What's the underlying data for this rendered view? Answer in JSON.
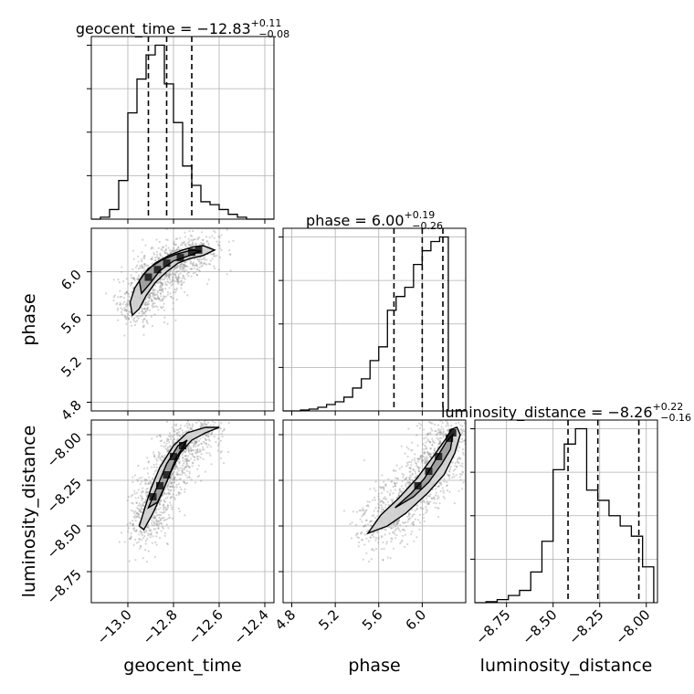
{
  "figure": {
    "colors": {
      "line": "#000000",
      "grid": "#b0b0b0",
      "scatter": "#888888"
    }
  },
  "chart_data": [
    {
      "type": "histogram",
      "panel": "geocent_time-hist",
      "title_text": "geocent_time = −12.83",
      "title_sup": "+0.11",
      "title_sub": "−0.08",
      "xlim": [
        -13.16,
        -12.36
      ],
      "grid": true,
      "quantiles": [
        -12.91,
        -12.83,
        -12.72
      ],
      "bin_edges": [
        -13.16,
        -13.12,
        -13.08,
        -13.04,
        -13.0,
        -12.96,
        -12.92,
        -12.88,
        -12.84,
        -12.8,
        -12.76,
        -12.72,
        -12.68,
        -12.64,
        -12.6,
        -12.56,
        -12.52,
        -12.48,
        -12.44,
        -12.4,
        -12.36
      ],
      "counts": [
        0,
        2,
        10,
        40,
        110,
        145,
        170,
        180,
        140,
        100,
        55,
        35,
        18,
        15,
        10,
        5,
        2,
        0,
        0,
        0
      ]
    },
    {
      "type": "histogram",
      "panel": "phase-hist",
      "title_text": "phase = 6.00",
      "title_sup": "+0.19",
      "title_sub": "−0.26",
      "xlim": [
        4.72,
        6.4
      ],
      "grid": true,
      "quantiles": [
        5.74,
        6.0,
        6.19
      ],
      "bin_edges": [
        4.72,
        4.8,
        4.88,
        4.96,
        5.04,
        5.12,
        5.2,
        5.28,
        5.36,
        5.44,
        5.52,
        5.6,
        5.68,
        5.76,
        5.84,
        5.92,
        6.0,
        6.08,
        6.16,
        6.24,
        6.32,
        6.4
      ],
      "counts": [
        0,
        0,
        1,
        2,
        4,
        7,
        10,
        15,
        25,
        35,
        55,
        70,
        110,
        125,
        135,
        160,
        175,
        185,
        190,
        0,
        0
      ]
    },
    {
      "type": "histogram",
      "panel": "luminosity_distance-hist",
      "title_text": "luminosity_distance = −8.26",
      "title_sup": "+0.22",
      "title_sub": "−0.16",
      "xlim": [
        -8.92,
        -7.94
      ],
      "grid": true,
      "quantiles": [
        -8.42,
        -8.26,
        -8.04
      ],
      "bin_edges": [
        -8.92,
        -8.86,
        -8.8,
        -8.74,
        -8.68,
        -8.62,
        -8.56,
        -8.5,
        -8.44,
        -8.38,
        -8.32,
        -8.26,
        -8.2,
        -8.14,
        -8.08,
        -8.02,
        -7.96
      ],
      "counts": [
        0,
        1,
        3,
        7,
        12,
        30,
        60,
        130,
        155,
        170,
        110,
        100,
        85,
        75,
        65,
        35
      ]
    },
    {
      "type": "2d-density",
      "panel": "phase-vs-geocent_time",
      "xlim": [
        -13.16,
        -12.36
      ],
      "ylim": [
        4.72,
        6.4
      ],
      "grid": true,
      "mean": [
        -12.83,
        5.97
      ],
      "sd": [
        0.1,
        0.2
      ],
      "curvature": 0.0,
      "contours": [
        [
          [
            -12.98,
            5.6
          ],
          [
            -12.99,
            5.72
          ],
          [
            -12.97,
            5.85
          ],
          [
            -12.93,
            5.98
          ],
          [
            -12.88,
            6.08
          ],
          [
            -12.82,
            6.15
          ],
          [
            -12.76,
            6.2
          ],
          [
            -12.71,
            6.23
          ],
          [
            -12.67,
            6.24
          ],
          [
            -12.62,
            6.2
          ],
          [
            -12.67,
            6.15
          ],
          [
            -12.73,
            6.12
          ],
          [
            -12.78,
            6.08
          ],
          [
            -12.83,
            6.0
          ],
          [
            -12.88,
            5.9
          ],
          [
            -12.92,
            5.78
          ],
          [
            -12.95,
            5.66
          ],
          [
            -12.98,
            5.6
          ]
        ],
        [
          [
            -12.94,
            5.8
          ],
          [
            -12.95,
            5.92
          ],
          [
            -12.91,
            6.03
          ],
          [
            -12.85,
            6.11
          ],
          [
            -12.79,
            6.16
          ],
          [
            -12.72,
            6.2
          ],
          [
            -12.68,
            6.19
          ],
          [
            -12.73,
            6.15
          ],
          [
            -12.8,
            6.1
          ],
          [
            -12.86,
            6.01
          ],
          [
            -12.9,
            5.9
          ],
          [
            -12.94,
            5.8
          ]
        ]
      ],
      "cells": [
        [
          -12.91,
          5.95
        ],
        [
          -12.87,
          6.02
        ],
        [
          -12.83,
          6.08
        ],
        [
          -12.77,
          6.13
        ],
        [
          -12.72,
          6.18
        ],
        [
          -12.69,
          6.2
        ]
      ]
    },
    {
      "type": "2d-density",
      "panel": "luminosity_distance-vs-geocent_time",
      "xlim": [
        -13.16,
        -12.36
      ],
      "ylim": [
        -8.92,
        -7.92
      ],
      "grid": true,
      "mean": [
        -12.83,
        -8.26
      ],
      "sd": [
        0.08,
        0.18
      ],
      "curvature": 0.0,
      "contours": [
        [
          [
            -12.95,
            -8.5
          ],
          [
            -12.93,
            -8.42
          ],
          [
            -12.9,
            -8.3
          ],
          [
            -12.86,
            -8.18
          ],
          [
            -12.8,
            -8.06
          ],
          [
            -12.74,
            -7.99
          ],
          [
            -12.66,
            -7.96
          ],
          [
            -12.6,
            -7.96
          ],
          [
            -12.66,
            -7.99
          ],
          [
            -12.72,
            -8.03
          ],
          [
            -12.77,
            -8.1
          ],
          [
            -12.81,
            -8.2
          ],
          [
            -12.85,
            -8.32
          ],
          [
            -12.89,
            -8.43
          ],
          [
            -12.93,
            -8.52
          ],
          [
            -12.95,
            -8.5
          ]
        ],
        [
          [
            -12.91,
            -8.4
          ],
          [
            -12.87,
            -8.28
          ],
          [
            -12.83,
            -8.16
          ],
          [
            -12.78,
            -8.06
          ],
          [
            -12.74,
            -8.03
          ],
          [
            -12.79,
            -8.13
          ],
          [
            -12.83,
            -8.26
          ],
          [
            -12.87,
            -8.37
          ],
          [
            -12.91,
            -8.4
          ]
        ]
      ],
      "cells": [
        [
          -12.89,
          -8.34
        ],
        [
          -12.86,
          -8.28
        ],
        [
          -12.83,
          -8.22
        ],
        [
          -12.8,
          -8.12
        ],
        [
          -12.76,
          -8.06
        ]
      ]
    },
    {
      "type": "2d-density",
      "panel": "luminosity_distance-vs-phase",
      "xlim": [
        4.72,
        6.4
      ],
      "ylim": [
        -8.92,
        -7.92
      ],
      "grid": true,
      "mean": [
        5.97,
        -8.26
      ],
      "sd": [
        0.22,
        0.18
      ],
      "curvature": 0.0,
      "contours": [
        [
          [
            5.5,
            -8.54
          ],
          [
            5.62,
            -8.44
          ],
          [
            5.78,
            -8.35
          ],
          [
            5.95,
            -8.24
          ],
          [
            6.1,
            -8.12
          ],
          [
            6.22,
            -8.02
          ],
          [
            6.27,
            -7.97
          ],
          [
            6.32,
            -7.96
          ],
          [
            6.35,
            -8.0
          ],
          [
            6.3,
            -8.1
          ],
          [
            6.2,
            -8.22
          ],
          [
            6.05,
            -8.32
          ],
          [
            5.85,
            -8.43
          ],
          [
            5.68,
            -8.5
          ],
          [
            5.5,
            -8.54
          ]
        ],
        [
          [
            5.75,
            -8.4
          ],
          [
            5.9,
            -8.32
          ],
          [
            6.02,
            -8.24
          ],
          [
            6.12,
            -8.14
          ],
          [
            6.22,
            -8.04
          ],
          [
            6.28,
            -8.0
          ],
          [
            6.26,
            -8.08
          ],
          [
            6.18,
            -8.16
          ],
          [
            6.06,
            -8.26
          ],
          [
            5.92,
            -8.34
          ],
          [
            5.75,
            -8.4
          ]
        ]
      ],
      "cells": [
        [
          5.96,
          -8.28
        ],
        [
          6.06,
          -8.2
        ],
        [
          6.15,
          -8.12
        ],
        [
          6.25,
          -8.02
        ],
        [
          6.28,
          -7.99
        ]
      ]
    },
    {
      "type": "axes",
      "x_axis_labels": [
        "geocent_time",
        "phase",
        "luminosity_distance"
      ],
      "y_axis_labels": [
        "phase",
        "luminosity_distance"
      ],
      "geocent_ticks": [
        "−13.0",
        "−12.8",
        "−12.6",
        "−12.4"
      ],
      "geocent_tick_values": [
        -13.0,
        -12.8,
        -12.6,
        -12.4
      ],
      "phase_ticks": [
        "4.8",
        "5.2",
        "5.6",
        "6.0"
      ],
      "phase_tick_values": [
        4.8,
        5.2,
        5.6,
        6.0
      ],
      "lum_ticks": [
        "−8.75",
        "−8.50",
        "−8.25",
        "−8.00"
      ],
      "lum_tick_values": [
        -8.75,
        -8.5,
        -8.25,
        -8.0
      ]
    }
  ]
}
